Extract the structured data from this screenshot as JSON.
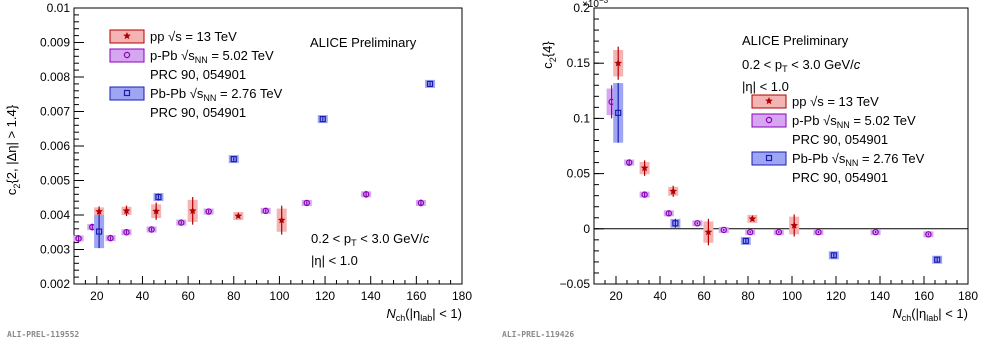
{
  "colors": {
    "pp": "#b30000",
    "ppFill": "#f4b4b4",
    "ppb": "#8b1a1a",
    "ppbFill": "#d6a6f0",
    "ppbMarker": "#8a00b8",
    "pbpb": "#1c1cb0",
    "pbpbFill": "#9ea6f4"
  },
  "chart_data": [
    {
      "type": "scatter",
      "ylabel_parts": [
        "c",
        "2",
        "{2, |Δη| > 1.4}"
      ],
      "xlabel_parts": [
        "N",
        "ch",
        "(|η",
        "lab",
        "| < 1)"
      ],
      "xlim": [
        10,
        180
      ],
      "ylim": [
        0.002,
        0.01
      ],
      "xticks": [
        "20",
        "40",
        "60",
        "80",
        "100",
        "120",
        "140",
        "160",
        "180"
      ],
      "yticks": [
        "0.002",
        "0.003",
        "0.004",
        "0.005",
        "0.006",
        "0.007",
        "0.008",
        "0.009",
        "0.01"
      ],
      "note": "ALICE Preliminary",
      "cuts": [
        "0.2 < p",
        "T",
        " < 3.0 GeV/",
        "c",
        "|η| < 1.0"
      ],
      "tag": "ALI-PREL-119552",
      "legend": [
        {
          "text": "pp",
          "energy": "√s = 13 TeV"
        },
        {
          "text": "p-Pb",
          "energy": "√s",
          "sub": "NN",
          "after": " = 5.02 TeV",
          "ref": "PRC 90, 054901"
        },
        {
          "text": "Pb-Pb",
          "energy": "√s",
          "sub": "NN",
          "after": " = 2.76 TeV",
          "ref": "PRC 90, 054901"
        }
      ],
      "series": [
        {
          "name": "pp √s = 13 TeV",
          "key": "pp",
          "x": [
            21,
            33,
            46,
            62,
            82,
            101
          ],
          "y": [
            0.0041,
            0.00412,
            0.00411,
            0.00412,
            0.00397,
            0.00385
          ],
          "err": [
            0.00015,
            0.00015,
            0.00025,
            0.0004,
            5e-05,
            0.00042
          ]
        },
        {
          "name": "p-Pb √sNN = 5.02 TeV",
          "key": "ppb",
          "x": [
            12,
            18,
            26,
            33,
            44,
            57,
            69,
            94,
            112,
            138,
            162
          ],
          "y": [
            0.00332,
            0.00365,
            0.00333,
            0.0035,
            0.00358,
            0.00378,
            0.0041,
            0.00412,
            0.00435,
            0.0046,
            0.00435
          ],
          "err": [
            0.0001,
            0.0001,
            5e-05,
            5e-05,
            5e-05,
            5e-05,
            5e-05,
            5e-05,
            5e-05,
            0.0001,
            0.0001
          ]
        },
        {
          "name": "Pb-Pb √sNN = 2.76 TeV",
          "key": "pbpb",
          "x": [
            21,
            47,
            80,
            119,
            166
          ],
          "y": [
            0.00352,
            0.00452,
            0.00562,
            0.00678,
            0.0078
          ],
          "err": [
            0.00048,
            0.0001,
            5e-05,
            5e-05,
            5e-05
          ]
        }
      ]
    },
    {
      "type": "scatter",
      "ylabel_parts": [
        "c",
        "2",
        "{4}"
      ],
      "xlabel_parts": [
        "N",
        "ch",
        "(|η",
        "lab",
        "| < 1)"
      ],
      "exponent": "×10",
      "exponent_power": "−3",
      "xlim": [
        10,
        180
      ],
      "ylim": [
        -0.05,
        0.2
      ],
      "xticks": [
        "20",
        "40",
        "60",
        "80",
        "100",
        "120",
        "140",
        "160",
        "180"
      ],
      "yticks": [
        "−0.05",
        "0",
        "0.05",
        "0.1",
        "0.15",
        "0.2"
      ],
      "note": "ALICE Preliminary",
      "cuts": [
        "0.2 < p",
        "T",
        " < 3.0 GeV/",
        "c",
        "|η| < 1.0"
      ],
      "tag": "ALI-PREL-119426",
      "legend": [
        {
          "text": "pp",
          "energy": "√s = 13 TeV"
        },
        {
          "text": "p-Pb",
          "energy": "√s",
          "sub": "NN",
          "after": " = 5.02 TeV",
          "ref": "PRC 90, 054901"
        },
        {
          "text": "Pb-Pb",
          "energy": "√s",
          "sub": "NN",
          "after": " = 2.76 TeV",
          "ref": "PRC 90, 054901"
        }
      ],
      "series": [
        {
          "name": "pp √s = 13 TeV",
          "key": "pp",
          "x": [
            21,
            33,
            46,
            62,
            82,
            101
          ],
          "y": [
            0.15,
            0.055,
            0.034,
            -0.003,
            0.009,
            0.003
          ],
          "err": [
            0.015,
            0.007,
            0.005,
            0.012,
            0.002,
            0.01
          ]
        },
        {
          "name": "p-Pb √sNN = 5.02 TeV",
          "key": "ppb",
          "x": [
            18,
            26,
            33,
            44,
            57,
            69,
            81,
            94,
            112,
            138,
            162
          ],
          "y": [
            0.115,
            0.06,
            0.031,
            0.014,
            0.005,
            -0.001,
            -0.003,
            -0.003,
            -0.003,
            -0.003,
            -0.005
          ],
          "err": [
            0.015,
            0.003,
            0.002,
            0.002,
            0.001,
            0.001,
            0.001,
            0.001,
            0.001,
            0.001,
            0.001
          ]
        },
        {
          "name": "Pb-Pb √sNN = 2.76 TeV",
          "key": "pbpb",
          "x": [
            21,
            47,
            79,
            119,
            166
          ],
          "y": [
            0.105,
            0.005,
            -0.011,
            -0.024,
            -0.028
          ],
          "err": [
            0.027,
            0.004,
            0.002,
            0.002,
            0.002
          ]
        }
      ]
    }
  ]
}
